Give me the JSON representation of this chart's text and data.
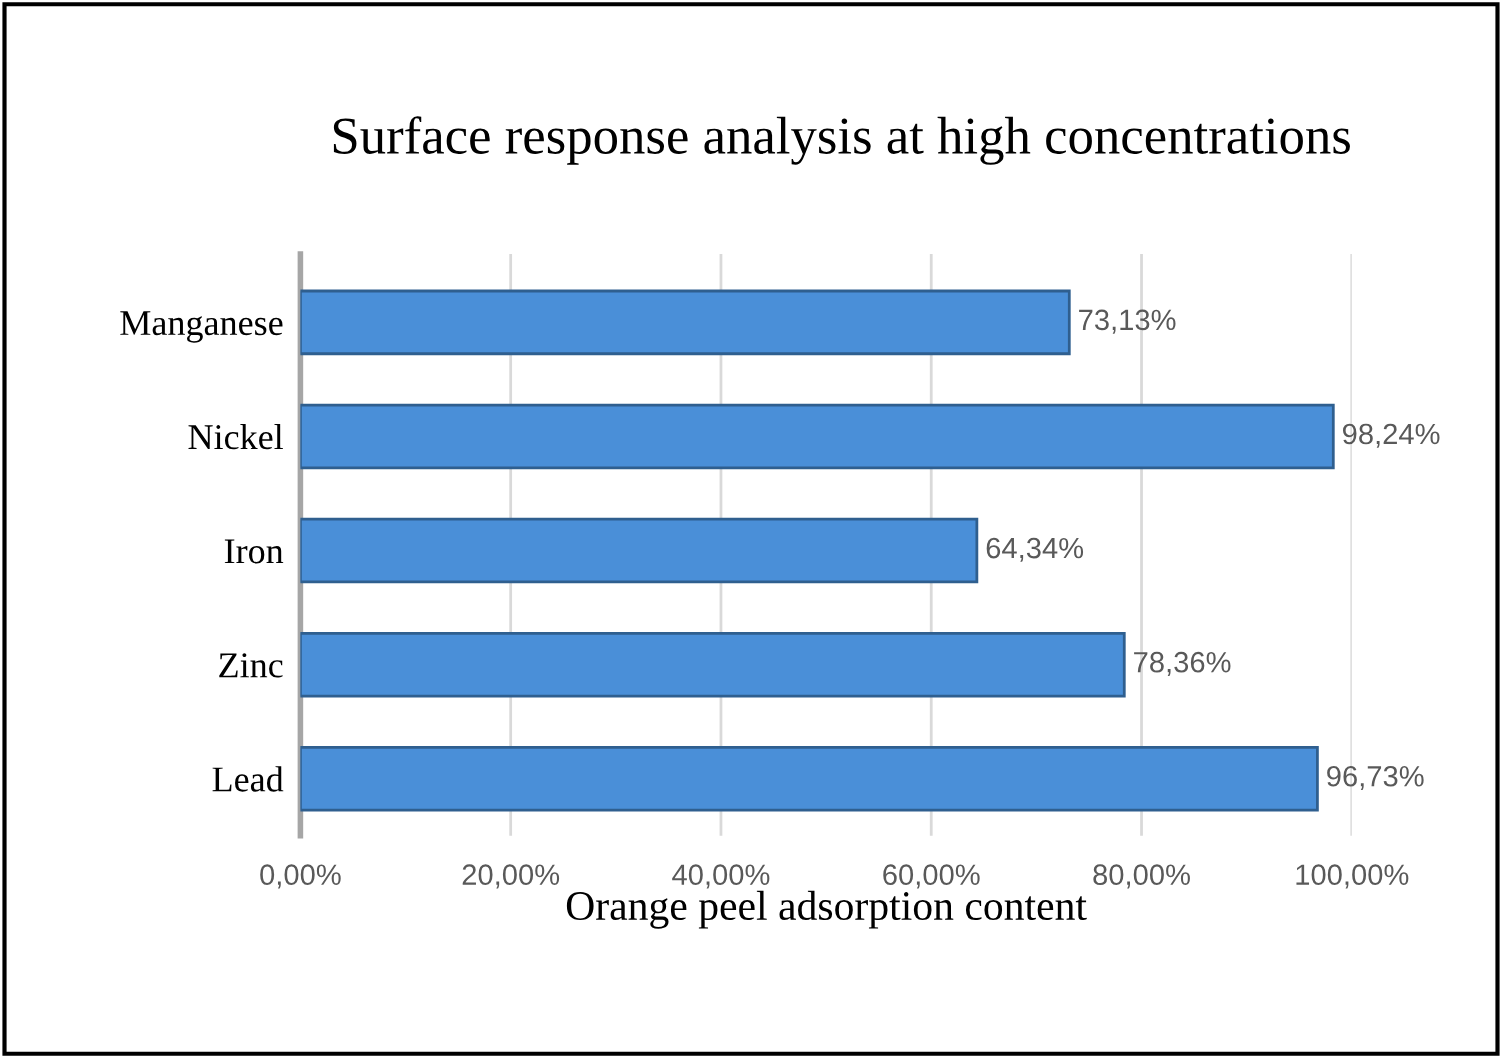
{
  "chart_data": {
    "type": "bar",
    "orientation": "horizontal",
    "title": "Surface response analysis at high concentrations",
    "xlabel": "Orange peel adsorption content",
    "categories": [
      "Manganese",
      "Nickel",
      "Iron",
      "Zinc",
      "Lead"
    ],
    "values": [
      73.13,
      98.24,
      64.34,
      78.36,
      96.73
    ],
    "value_labels": [
      "73,13%",
      "98,24%",
      "64,34%",
      "78,36%",
      "96,73%"
    ],
    "color": "#4a8fd8",
    "xlim": [
      0,
      100
    ],
    "xticks": [
      {
        "value": 0,
        "label": "0,00%"
      },
      {
        "value": 20,
        "label": "20,00%"
      },
      {
        "value": 40,
        "label": "40,00%"
      },
      {
        "value": 60,
        "label": "60,00%"
      },
      {
        "value": 80,
        "label": "80,00%"
      },
      {
        "value": 100,
        "label": "100,00%"
      }
    ],
    "grid": "x"
  }
}
